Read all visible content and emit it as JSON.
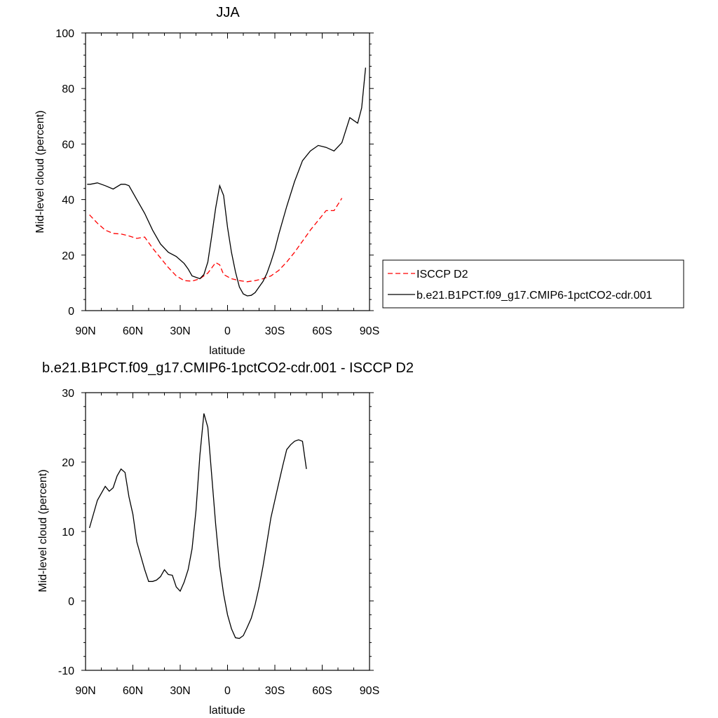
{
  "chart_data": [
    {
      "type": "line",
      "title": "JJA",
      "xlabel": "latitude",
      "ylabel": "Mid-level cloud (percent)",
      "xlim": [
        90,
        -90
      ],
      "ylim": [
        0,
        100
      ],
      "x_ticks": [
        {
          "value": 90,
          "label": "90N"
        },
        {
          "value": 60,
          "label": "60N"
        },
        {
          "value": 30,
          "label": "30N"
        },
        {
          "value": 0,
          "label": "0"
        },
        {
          "value": -30,
          "label": "30S"
        },
        {
          "value": -60,
          "label": "60S"
        },
        {
          "value": -90,
          "label": "90S"
        }
      ],
      "y_ticks": [
        {
          "value": 0,
          "label": "0"
        },
        {
          "value": 20,
          "label": "20"
        },
        {
          "value": 40,
          "label": "40"
        },
        {
          "value": 60,
          "label": "60"
        },
        {
          "value": 80,
          "label": "80"
        },
        {
          "value": 100,
          "label": "100"
        }
      ],
      "grid": false,
      "legend": "outside right",
      "series": [
        {
          "name": "ISCCP D2",
          "color": "#ff0000",
          "dash": "dashed",
          "points": [
            [
              87.5,
              34.5
            ],
            [
              82.5,
              31.5
            ],
            [
              77.5,
              29.0
            ],
            [
              72.5,
              27.8
            ],
            [
              67.5,
              27.6
            ],
            [
              62.5,
              26.9
            ],
            [
              57.5,
              26.0
            ],
            [
              52.5,
              26.5
            ],
            [
              47.5,
              22.5
            ],
            [
              42.5,
              19.0
            ],
            [
              37.5,
              15.5
            ],
            [
              32.5,
              12.5
            ],
            [
              27.5,
              10.8
            ],
            [
              22.5,
              10.6
            ],
            [
              17.5,
              11.5
            ],
            [
              12.5,
              13.5
            ],
            [
              7.5,
              17.3
            ],
            [
              5.0,
              16.5
            ],
            [
              2.5,
              13.0
            ],
            [
              -2.5,
              11.5
            ],
            [
              -7.5,
              10.8
            ],
            [
              -12.5,
              10.4
            ],
            [
              -17.5,
              10.8
            ],
            [
              -22.5,
              11.5
            ],
            [
              -27.5,
              12.5
            ],
            [
              -32.5,
              14.5
            ],
            [
              -37.5,
              17.5
            ],
            [
              -42.5,
              21.0
            ],
            [
              -47.5,
              25.0
            ],
            [
              -52.5,
              29.0
            ],
            [
              -57.5,
              32.5
            ],
            [
              -62.5,
              36.0
            ],
            [
              -67.5,
              36.0
            ],
            [
              -72.5,
              40.5
            ]
          ]
        },
        {
          "name": "b.e21.B1PCT.f09_g17.CMIP6-1pctCO2-cdr.001",
          "color": "#000000",
          "dash": "solid",
          "points": [
            [
              89.0,
              45.5
            ],
            [
              87.0,
              45.5
            ],
            [
              82.5,
              46.0
            ],
            [
              77.5,
              45.0
            ],
            [
              72.5,
              43.8
            ],
            [
              67.5,
              45.5
            ],
            [
              65.0,
              45.5
            ],
            [
              62.5,
              45.0
            ],
            [
              57.5,
              40.0
            ],
            [
              52.5,
              35.0
            ],
            [
              47.5,
              29.0
            ],
            [
              42.5,
              24.0
            ],
            [
              37.5,
              21.0
            ],
            [
              32.5,
              19.5
            ],
            [
              27.5,
              17.0
            ],
            [
              25.0,
              15.0
            ],
            [
              22.5,
              12.5
            ],
            [
              17.5,
              11.5
            ],
            [
              15.0,
              13.0
            ],
            [
              12.5,
              17.5
            ],
            [
              10.0,
              27.0
            ],
            [
              7.5,
              37.0
            ],
            [
              5.0,
              45.0
            ],
            [
              2.5,
              41.5
            ],
            [
              0.0,
              30.0
            ],
            [
              -2.5,
              21.0
            ],
            [
              -5.0,
              14.0
            ],
            [
              -7.5,
              8.5
            ],
            [
              -10.0,
              6.0
            ],
            [
              -12.5,
              5.3
            ],
            [
              -15.0,
              5.5
            ],
            [
              -17.5,
              6.5
            ],
            [
              -20.0,
              8.5
            ],
            [
              -22.5,
              10.5
            ],
            [
              -25.0,
              13.5
            ],
            [
              -27.5,
              17.5
            ],
            [
              -30.0,
              22.0
            ],
            [
              -32.5,
              27.5
            ],
            [
              -37.5,
              37.5
            ],
            [
              -42.5,
              46.5
            ],
            [
              -47.5,
              54.0
            ],
            [
              -52.5,
              57.5
            ],
            [
              -57.5,
              59.5
            ],
            [
              -62.5,
              58.8
            ],
            [
              -67.5,
              57.5
            ],
            [
              -72.5,
              60.5
            ],
            [
              -77.5,
              69.5
            ],
            [
              -82.5,
              67.5
            ],
            [
              -85.0,
              73.0
            ],
            [
              -87.5,
              87.5
            ]
          ]
        }
      ],
      "legend_entries": [
        {
          "label": "ISCCP D2",
          "color": "#ff0000",
          "dash": "dashed"
        },
        {
          "label": "b.e21.B1PCT.f09_g17.CMIP6-1pctCO2-cdr.001",
          "color": "#000000",
          "dash": "solid"
        }
      ]
    },
    {
      "type": "line",
      "title": "b.e21.B1PCT.f09_g17.CMIP6-1pctCO2-cdr.001 - ISCCP D2",
      "xlabel": "latitude",
      "ylabel": "Mid-level cloud (percent)",
      "xlim": [
        90,
        -90
      ],
      "ylim": [
        -10,
        30
      ],
      "x_ticks": [
        {
          "value": 90,
          "label": "90N"
        },
        {
          "value": 60,
          "label": "60N"
        },
        {
          "value": 30,
          "label": "30N"
        },
        {
          "value": 0,
          "label": "0"
        },
        {
          "value": -30,
          "label": "30S"
        },
        {
          "value": -60,
          "label": "60S"
        },
        {
          "value": -90,
          "label": "90S"
        }
      ],
      "y_ticks": [
        {
          "value": -10,
          "label": "-10"
        },
        {
          "value": 0,
          "label": "0"
        },
        {
          "value": 10,
          "label": "10"
        },
        {
          "value": 20,
          "label": "20"
        },
        {
          "value": 30,
          "label": "30"
        }
      ],
      "grid": false,
      "series": [
        {
          "color": "#000000",
          "dash": "solid",
          "points": [
            [
              87.5,
              10.5
            ],
            [
              82.5,
              14.5
            ],
            [
              77.5,
              16.5
            ],
            [
              75.0,
              15.8
            ],
            [
              72.5,
              16.3
            ],
            [
              70.0,
              18.0
            ],
            [
              67.5,
              19.0
            ],
            [
              65.0,
              18.5
            ],
            [
              62.5,
              15.0
            ],
            [
              60.0,
              12.5
            ],
            [
              57.5,
              8.5
            ],
            [
              52.5,
              4.5
            ],
            [
              50.0,
              2.8
            ],
            [
              47.5,
              2.8
            ],
            [
              45.0,
              3.0
            ],
            [
              42.5,
              3.5
            ],
            [
              40.0,
              4.5
            ],
            [
              37.5,
              3.8
            ],
            [
              35.0,
              3.7
            ],
            [
              32.5,
              2.0
            ],
            [
              30.0,
              1.4
            ],
            [
              27.5,
              2.7
            ],
            [
              25.0,
              4.5
            ],
            [
              22.5,
              7.5
            ],
            [
              20.0,
              13.0
            ],
            [
              17.5,
              21.0
            ],
            [
              15.0,
              27.0
            ],
            [
              12.5,
              25.0
            ],
            [
              10.0,
              18.0
            ],
            [
              7.5,
              11.0
            ],
            [
              5.0,
              5.0
            ],
            [
              2.5,
              1.0
            ],
            [
              0.0,
              -2.0
            ],
            [
              -2.5,
              -4.0
            ],
            [
              -5.0,
              -5.3
            ],
            [
              -7.5,
              -5.4
            ],
            [
              -10.0,
              -5.0
            ],
            [
              -12.5,
              -3.8
            ],
            [
              -15.0,
              -2.5
            ],
            [
              -17.5,
              -0.5
            ],
            [
              -20.0,
              2.0
            ],
            [
              -22.5,
              5.0
            ],
            [
              -25.0,
              8.5
            ],
            [
              -27.5,
              12.0
            ],
            [
              -30.0,
              14.5
            ],
            [
              -32.5,
              17.0
            ],
            [
              -35.0,
              19.5
            ],
            [
              -37.5,
              21.8
            ],
            [
              -40.0,
              22.5
            ],
            [
              -42.5,
              23.0
            ],
            [
              -45.0,
              23.2
            ],
            [
              -47.5,
              23.0
            ],
            [
              -50.0,
              19.0
            ]
          ]
        }
      ]
    }
  ]
}
